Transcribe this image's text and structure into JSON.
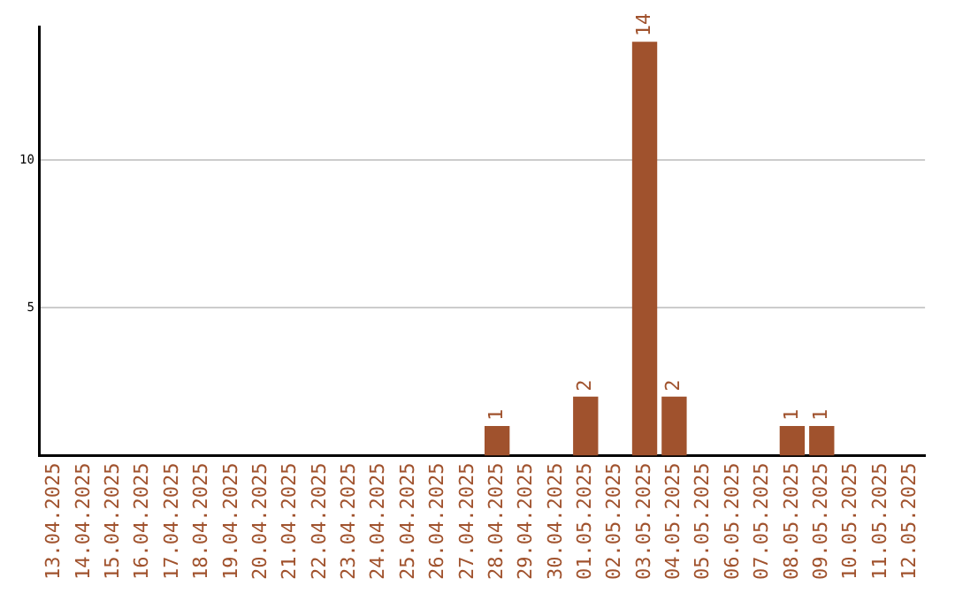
{
  "chart_data": {
    "type": "bar",
    "categories": [
      "13.04.2025",
      "14.04.2025",
      "15.04.2025",
      "16.04.2025",
      "17.04.2025",
      "18.04.2025",
      "19.04.2025",
      "20.04.2025",
      "21.04.2025",
      "22.04.2025",
      "23.04.2025",
      "24.04.2025",
      "25.04.2025",
      "26.04.2025",
      "27.04.2025",
      "28.04.2025",
      "29.04.2025",
      "30.04.2025",
      "01.05.2025",
      "02.05.2025",
      "03.05.2025",
      "04.05.2025",
      "05.05.2025",
      "06.05.2025",
      "07.05.2025",
      "08.05.2025",
      "09.05.2025",
      "10.05.2025",
      "11.05.2025",
      "12.05.2025"
    ],
    "values": [
      0,
      0,
      0,
      0,
      0,
      0,
      0,
      0,
      0,
      0,
      0,
      0,
      0,
      0,
      0,
      1,
      0,
      0,
      2,
      0,
      14,
      2,
      0,
      0,
      0,
      1,
      1,
      0,
      0,
      0
    ],
    "value_labels": [
      null,
      null,
      null,
      null,
      null,
      null,
      null,
      null,
      null,
      null,
      null,
      null,
      null,
      null,
      null,
      "1",
      null,
      null,
      "2",
      null,
      "14",
      "2",
      null,
      null,
      null,
      "1",
      "1",
      null,
      null,
      null
    ],
    "color": "#a0522d",
    "ylim": [
      0,
      14.5
    ],
    "yticks": [
      5,
      10
    ],
    "grid": "y",
    "legend": false
  }
}
